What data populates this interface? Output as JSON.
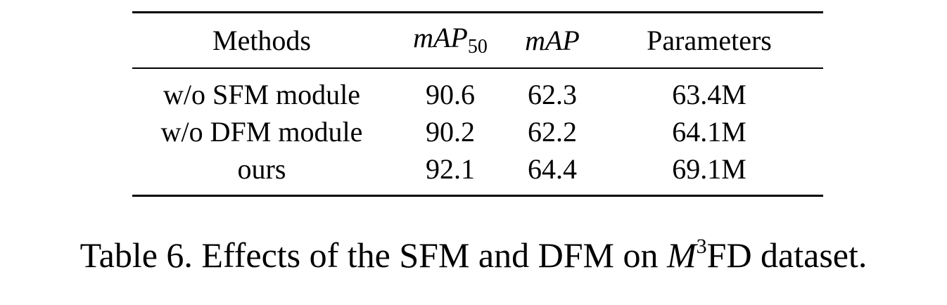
{
  "table": {
    "headers": {
      "methods": "Methods",
      "map50_base": "mAP",
      "map50_sub": "50",
      "map": "mAP",
      "parameters": "Parameters"
    },
    "rows": [
      {
        "method": "w/o SFM module",
        "map50": "90.6",
        "map": "62.3",
        "parameters": "63.4M"
      },
      {
        "method": "w/o DFM module",
        "map50": "90.2",
        "map": "62.2",
        "parameters": "64.1M"
      },
      {
        "method": "ours",
        "map50": "92.1",
        "map": "64.4",
        "parameters": "69.1M"
      }
    ]
  },
  "caption": {
    "prefix": "Table 6. Effects of the SFM and DFM on ",
    "math_base": "M",
    "math_sup": "3",
    "suffix": "FD dataset."
  }
}
